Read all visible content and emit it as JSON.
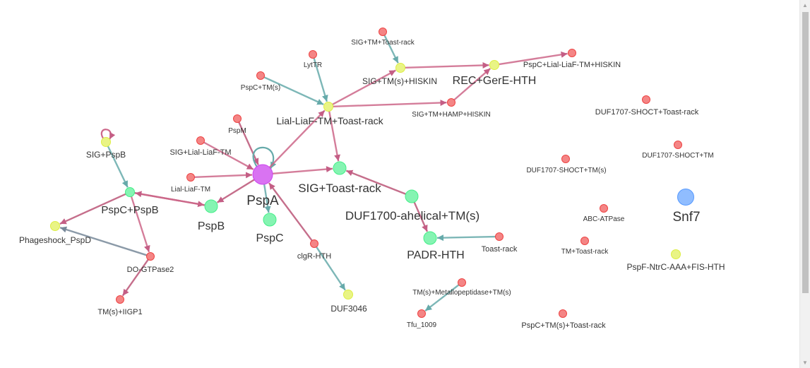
{
  "graph": {
    "nodes": [
      {
        "id": "PspA",
        "label": "PspA",
        "color": "#cc44ee",
        "size": "xl"
      },
      {
        "id": "PspB",
        "label": "PspB",
        "color": "#44ee88",
        "size": "m"
      },
      {
        "id": "PspC",
        "label": "PspC",
        "color": "#44ee88",
        "size": "m"
      },
      {
        "id": "PspC+PspB",
        "label": "PspC+PspB",
        "color": "#44ee88",
        "size": "s"
      },
      {
        "id": "SIG+PspB",
        "label": "SIG+PspB",
        "color": "#ddee44",
        "size": "s"
      },
      {
        "id": "Phageshock_PspD",
        "label": "Phageshock_PspD",
        "color": "#ddee44",
        "size": "s"
      },
      {
        "id": "DO-GTPase2",
        "label": "DO-GTPase2",
        "color": "#ee4444",
        "size": "xs"
      },
      {
        "id": "TM(s)+IIGP1",
        "label": "TM(s)+IIGP1",
        "color": "#ee4444",
        "size": "xs"
      },
      {
        "id": "Lial-LiaF-TM",
        "label": "Lial-LiaF-TM",
        "color": "#ee4444",
        "size": "xs"
      },
      {
        "id": "SIG+Lial-LiaF-TM",
        "label": "SIG+Lial-LiaF-TM",
        "color": "#ee4444",
        "size": "xs"
      },
      {
        "id": "PspM",
        "label": "PspM",
        "color": "#ee4444",
        "size": "xs"
      },
      {
        "id": "PspC+TM(s)",
        "label": "PspC+TM(s)",
        "color": "#ee4444",
        "size": "xs"
      },
      {
        "id": "LytTR",
        "label": "LytTR",
        "color": "#ee4444",
        "size": "xs"
      },
      {
        "id": "Lial-LiaF-TM+Toast-rack",
        "label": "Lial-LiaF-TM+Toast-rack",
        "color": "#ddee44",
        "size": "s"
      },
      {
        "id": "SIG+TM+Toast-rack",
        "label": "SIG+TM+Toast-rack",
        "color": "#ee4444",
        "size": "xs"
      },
      {
        "id": "SIG+TM(s)+HISKIN",
        "label": "SIG+TM(s)+HISKIN",
        "color": "#ddee44",
        "size": "s"
      },
      {
        "id": "REC+GerE-HTH",
        "label": "REC+GerE-HTH",
        "color": "#ddee44",
        "size": "s"
      },
      {
        "id": "PspC+Lial-LiaF-TM+HISKIN",
        "label": "PspC+Lial-LiaF-TM+HISKIN",
        "color": "#ee4444",
        "size": "xs"
      },
      {
        "id": "SIG+TM+HAMP+HISKIN",
        "label": "SIG+TM+HAMP+HISKIN",
        "color": "#ee4444",
        "size": "xs"
      },
      {
        "id": "SIG+Toast-rack",
        "label": "SIG+Toast-rack",
        "color": "#44ee88",
        "size": "m"
      },
      {
        "id": "DUF1700-ahelical+TM(s)",
        "label": "DUF1700-ahelical+TM(s)",
        "color": "#44ee88",
        "size": "m"
      },
      {
        "id": "PADR-HTH",
        "label": "PADR-HTH",
        "color": "#44ee88",
        "size": "m"
      },
      {
        "id": "Toast-rack",
        "label": "Toast-rack",
        "color": "#ee4444",
        "size": "xs"
      },
      {
        "id": "clgR-HTH",
        "label": "clgR-HTH",
        "color": "#ee4444",
        "size": "xs"
      },
      {
        "id": "DUF3046",
        "label": "DUF3046",
        "color": "#ddee44",
        "size": "s"
      },
      {
        "id": "TM(s)+Metallopeptidase+TM(s)",
        "label": "TM(s)+Metallopeptidase+TM(s)",
        "color": "#ee4444",
        "size": "xs"
      },
      {
        "id": "Tfu_1009",
        "label": "Tfu_1009",
        "color": "#ee4444",
        "size": "xs"
      },
      {
        "id": "DUF1707-SHOCT+Toast-rack",
        "label": "DUF1707-SHOCT+Toast-rack",
        "color": "#ee4444",
        "size": "xs"
      },
      {
        "id": "DUF1707-SHOCT+TM",
        "label": "DUF1707-SHOCT+TM",
        "color": "#ee4444",
        "size": "xs"
      },
      {
        "id": "DUF1707-SHOCT+TM(s)",
        "label": "DUF1707-SHOCT+TM(s)",
        "color": "#ee4444",
        "size": "xs"
      },
      {
        "id": "ABC-ATPase",
        "label": "ABC-ATPase",
        "color": "#ee4444",
        "size": "xs"
      },
      {
        "id": "TM+Toast-rack",
        "label": "TM+Toast-rack",
        "color": "#ee4444",
        "size": "xs"
      },
      {
        "id": "PspC+TM(s)+Toast-rack",
        "label": "PspC+TM(s)+Toast-rack",
        "color": "#ee4444",
        "size": "xs"
      },
      {
        "id": "Snf7",
        "label": "Snf7",
        "color": "#5599ff",
        "size": "l"
      },
      {
        "id": "PspF-NtrC-AAA+FIS-HTH",
        "label": "PspF-NtrC-AAA+FIS-HTH",
        "color": "#ddee44",
        "size": "s"
      }
    ],
    "edges": [
      {
        "source": "Lial-LiaF-TM",
        "target": "PspA",
        "color": "#cc6688"
      },
      {
        "source": "SIG+Lial-LiaF-TM",
        "target": "PspA",
        "color": "#cc6688"
      },
      {
        "source": "PspM",
        "target": "PspA",
        "color": "#bb5577"
      },
      {
        "source": "PspA",
        "target": "PspB",
        "color": "#bb5577"
      },
      {
        "source": "PspA",
        "target": "PspC",
        "color": "#66aaaa"
      },
      {
        "source": "PspA",
        "target": "PspA",
        "color": "#66aaaa"
      },
      {
        "source": "PspA",
        "target": "SIG+Toast-rack",
        "color": "#cc6688"
      },
      {
        "source": "PspA",
        "target": "Lial-LiaF-TM+Toast-rack",
        "color": "#cc6688"
      },
      {
        "source": "PspC+PspB",
        "target": "PspB",
        "color": "#bb5577"
      },
      {
        "source": "PspB",
        "target": "PspC+PspB",
        "color": "#cc6688"
      },
      {
        "source": "PspC+PspB",
        "target": "Phageshock_PspD",
        "color": "#bb5577"
      },
      {
        "source": "PspC+PspB",
        "target": "DO-GTPase2",
        "color": "#cc6688"
      },
      {
        "source": "SIG+PspB",
        "target": "PspC+PspB",
        "color": "#66aaaa"
      },
      {
        "source": "SIG+PspB",
        "target": "SIG+PspB",
        "color": "#cc6688"
      },
      {
        "source": "DO-GTPase2",
        "target": "Phageshock_PspD",
        "color": "#778899"
      },
      {
        "source": "DO-GTPase2",
        "target": "TM(s)+IIGP1",
        "color": "#bb5577"
      },
      {
        "source": "PspC+TM(s)",
        "target": "Lial-LiaF-TM+Toast-rack",
        "color": "#66aaaa"
      },
      {
        "source": "LytTR",
        "target": "Lial-LiaF-TM+Toast-rack",
        "color": "#66aaaa"
      },
      {
        "source": "Lial-LiaF-TM+Toast-rack",
        "target": "SIG+TM(s)+HISKIN",
        "color": "#cc6688"
      },
      {
        "source": "Lial-LiaF-TM+Toast-rack",
        "target": "SIG+TM+HAMP+HISKIN",
        "color": "#cc6688"
      },
      {
        "source": "Lial-LiaF-TM+Toast-rack",
        "target": "SIG+Toast-rack",
        "color": "#cc6688"
      },
      {
        "source": "SIG+TM+Toast-rack",
        "target": "SIG+TM(s)+HISKIN",
        "color": "#66aaaa"
      },
      {
        "source": "SIG+TM(s)+HISKIN",
        "target": "REC+GerE-HTH",
        "color": "#cc6688"
      },
      {
        "source": "SIG+TM+HAMP+HISKIN",
        "target": "REC+GerE-HTH",
        "color": "#cc6688"
      },
      {
        "source": "REC+GerE-HTH",
        "target": "PspC+Lial-LiaF-TM+HISKIN",
        "color": "#cc6688"
      },
      {
        "source": "DUF1700-ahelical+TM(s)",
        "target": "SIG+Toast-rack",
        "color": "#bb5577"
      },
      {
        "source": "DUF1700-ahelical+TM(s)",
        "target": "PADR-HTH",
        "color": "#bb5577"
      },
      {
        "source": "Toast-rack",
        "target": "PADR-HTH",
        "color": "#66aaaa"
      },
      {
        "source": "clgR-HTH",
        "target": "PspA",
        "color": "#bb5577"
      },
      {
        "source": "clgR-HTH",
        "target": "DUF3046",
        "color": "#66aaaa"
      },
      {
        "source": "TM(s)+Metallopeptidase+TM(s)",
        "target": "Tfu_1009",
        "color": "#66aaaa"
      }
    ]
  }
}
